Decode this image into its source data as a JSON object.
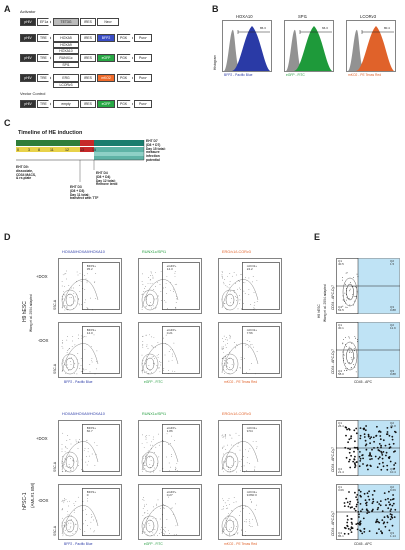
{
  "panels": {
    "A": "A",
    "B": "B",
    "C": "C",
    "D": "D",
    "E": "E"
  },
  "panelA": {
    "activator_label": "Activator",
    "activator_row": [
      "pHIV",
      "EF1a",
      "TET3G",
      "IRES",
      "Neo³"
    ],
    "rows": [
      {
        "segs": [
          "pHIV",
          "TRE",
          "HOXA5",
          "IRES",
          "BFP2",
          "PGK",
          "Puroʳ"
        ],
        "sub": [
          "HOXA9",
          "HOXA10"
        ]
      },
      {
        "segs": [
          "pHIV",
          "TRE",
          "RUNX1c",
          "IRES",
          "eGFP",
          "PGK",
          "Puroʳ"
        ],
        "sub": [
          "SPI1"
        ]
      },
      {
        "segs": [
          "pHIV",
          "TRE",
          "ERG",
          "IRES",
          "mKO2",
          "PGK",
          "Puroʳ"
        ],
        "sub": [
          "LCORv3"
        ]
      }
    ],
    "vector_label": "Vector Control",
    "vector_row": [
      "pHIV",
      "TRE",
      "empty",
      "IRES",
      "eGFP",
      "PGK",
      "Puroʳ"
    ],
    "colors": {
      "bfp": "#3a4dc6",
      "egfp": "#27a844",
      "mko2": "#ef6a2a"
    }
  },
  "panelB": {
    "histograms": [
      {
        "title": "HOXA10",
        "gate": "86.3",
        "xlabel": "BFP2 - Pacific Blue",
        "color": "#2a3aa6"
      },
      {
        "title": "SPI1",
        "gate": "66.3",
        "xlabel": "eGFP - FITC",
        "color": "#1e9a3a"
      },
      {
        "title": "LCORv3",
        "gate": "80.4",
        "xlabel": "mKO2 - PE Texas Red",
        "color": "#e0622a"
      }
    ],
    "ylabel": "Histogram"
  },
  "panelC": {
    "title": "Timeline of HE induction",
    "days": [
      "0",
      "3",
      "8",
      "11",
      "12",
      "13",
      "15"
    ],
    "eht_d0": [
      "EHT D0:",
      "dissociate,",
      "CD34 MACS,",
      "& re-plate"
    ],
    "eht_d3": [
      "EHT D3",
      "(D8 + D3)",
      "Day 11 total:",
      "transfect with TTF"
    ],
    "eht_d4": [
      "EHT D4",
      "(D8 + D4)",
      "Day 12 total:",
      "Remove lentii"
    ],
    "eht_d7": [
      "EHT D7",
      "(D8 + D7)",
      "Day 15 total:",
      "measure",
      "infection",
      "potential"
    ]
  },
  "panelD": {
    "row_groups": [
      {
        "label": "H9 hESC",
        "sublabel": "Wang et al. 2004 adapted"
      },
      {
        "label": "hPSC-1",
        "sublabel": "(AML#1 BM)"
      }
    ],
    "plus_dox": "+DOX",
    "minus_dox": "-DOX",
    "col_titles": [
      "HOXA5/HOXA9/HOXA10",
      "RUNX1c/SPI1",
      "ERG/v1/LCORv3"
    ],
    "xlabels": [
      "BFP2 - Pacific Blue",
      "eGFP - FITC",
      "mKO2 - PE Texas Red"
    ],
    "ylabel": "SSC-A",
    "top_gates": [
      [
        "BFP2+",
        "35.2"
      ],
      [
        "eGFP+",
        "14.3"
      ],
      [
        "mKO2+",
        "24.2"
      ],
      [
        "BFP2+",
        "14.0"
      ],
      [
        "eGFP+",
        "0.21"
      ],
      [
        "mKO2+",
        "7.56"
      ]
    ],
    "bottom_gates": [
      [
        "BFP2+",
        "60.7"
      ],
      [
        "eGFP+",
        "1.86"
      ],
      [
        "mKO2+",
        "9.54"
      ],
      [
        "BFP2+",
        "0"
      ],
      [
        "eGFP+",
        "0.27"
      ],
      [
        "mKO2+",
        "9.860 0"
      ]
    ]
  },
  "panelE": {
    "ylabel": "CD34 - APC-Cy7",
    "xlabel": "CD45 - APC",
    "top_quadrants": [
      [
        "Q1",
        "40.5",
        "Q2",
        "1.5"
      ],
      [
        "Q4",
        "53.5",
        "Q3",
        "0.88"
      ],
      [
        "Q1",
        "30.1",
        "Q2",
        "11.9"
      ],
      [
        "Q4",
        "58.0",
        "Q3",
        "0.88"
      ]
    ],
    "bottom_quadrants": [
      [
        "Q1",
        "26.4",
        "Q2",
        "41.8"
      ],
      [
        "Q4",
        "21.4",
        "Q3",
        "10.4"
      ],
      [
        "Q1",
        "3.06",
        "Q2",
        "9.69"
      ],
      [
        "Q4",
        "86.1",
        "Q3",
        "1.14"
      ]
    ],
    "gate_color": "#bfe3f5"
  }
}
